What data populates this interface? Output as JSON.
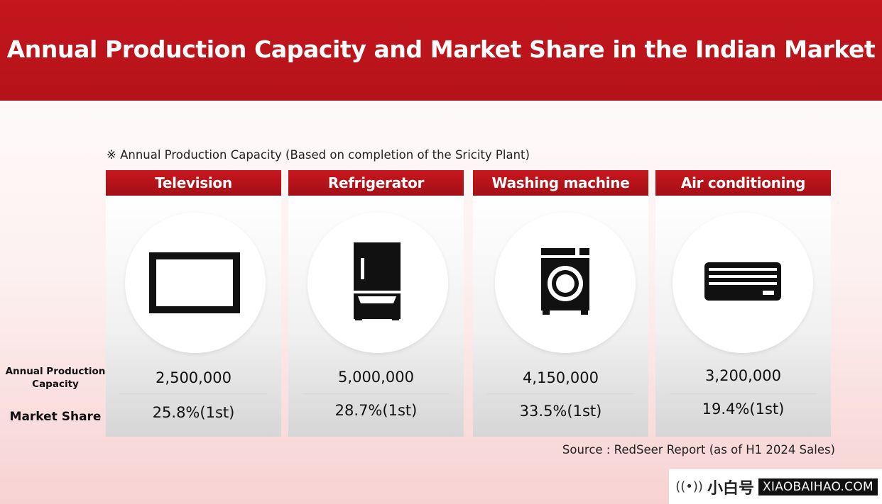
{
  "title": "Annual Production Capacity and Market Share in the Indian Market",
  "note": "※ Annual Production Capacity (Based on completion of the Sricity Plant)",
  "row_labels": {
    "capacity": "Annual Production Capacity",
    "market_share": "Market Share"
  },
  "categories": [
    {
      "name": "Television",
      "icon": "television-icon",
      "capacity": "2,500,000",
      "market_share": "25.8%(1st)"
    },
    {
      "name": "Refrigerator",
      "icon": "refrigerator-icon",
      "capacity": "5,000,000",
      "market_share": "28.7%(1st)"
    },
    {
      "name": "Washing machine",
      "icon": "washing-machine-icon",
      "capacity": "4,150,000",
      "market_share": "33.5%(1st)"
    },
    {
      "name": "Air conditioning",
      "icon": "air-conditioner-icon",
      "capacity": "3,200,000",
      "market_share": "19.4%(1st)"
    }
  ],
  "source": "Source : RedSeer Report (as of H1 2024 Sales)",
  "watermark": {
    "cn": "小白号",
    "url": "XIAOBAIHAO.COM"
  },
  "colors": {
    "header": "#c4161c",
    "category_header": "#b5121a"
  }
}
